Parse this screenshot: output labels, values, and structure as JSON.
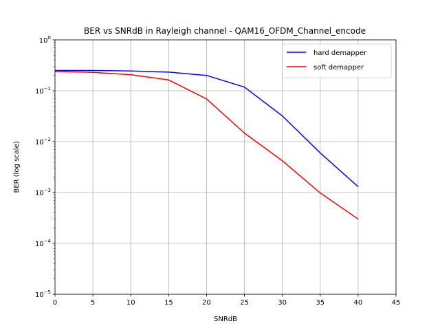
{
  "chart_data": {
    "type": "line",
    "title": "BER vs SNRdB in Rayleigh channel - QAM16_OFDM_Channel_encode",
    "xlabel": "SNRdB",
    "ylabel": "BER (log scale)",
    "xlim": [
      0,
      45
    ],
    "ylim": [
      1e-05,
      1
    ],
    "yscale": "log",
    "grid": true,
    "legend_position": "top-right",
    "x": [
      0,
      5,
      10,
      15,
      20,
      25,
      30,
      35,
      40
    ],
    "x_ticks": [
      "0",
      "5",
      "10",
      "15",
      "20",
      "25",
      "30",
      "35",
      "40",
      "45"
    ],
    "y_ticks": [
      {
        "base": "10",
        "exp": "0"
      },
      {
        "base": "10",
        "exp": "−1"
      },
      {
        "base": "10",
        "exp": "−2"
      },
      {
        "base": "10",
        "exp": "−3"
      },
      {
        "base": "10",
        "exp": "−4"
      },
      {
        "base": "10",
        "exp": "−5"
      }
    ],
    "series": [
      {
        "name": "hard demapper",
        "color": "#0000ff",
        "values": [
          0.25,
          0.25,
          0.245,
          0.233,
          0.2,
          0.118,
          0.032,
          0.006,
          0.0013
        ]
      },
      {
        "name": "soft demapper",
        "color": "#ff0000",
        "values": [
          0.24,
          0.23,
          0.207,
          0.163,
          0.069,
          0.0147,
          0.0042,
          0.00098,
          0.0003
        ]
      }
    ]
  }
}
